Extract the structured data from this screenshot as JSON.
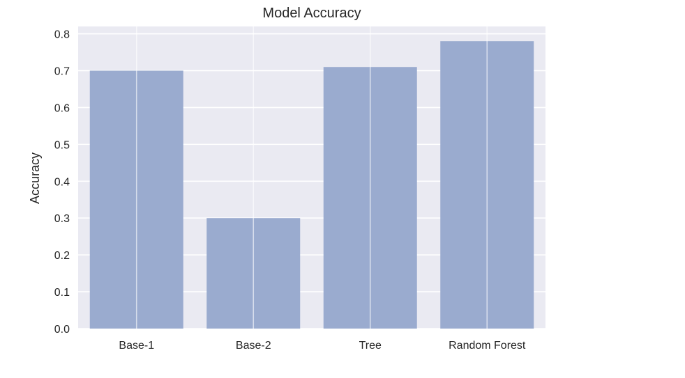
{
  "chart_data": {
    "type": "bar",
    "title": "Model Accuracy",
    "xlabel": "",
    "ylabel": "Accuracy",
    "categories": [
      "Base-1",
      "Base-2",
      "Tree",
      "Random Forest"
    ],
    "values": [
      0.7,
      0.3,
      0.71,
      0.78
    ],
    "ylim": [
      0,
      0.82
    ],
    "yticks": [
      "0.0",
      "0.1",
      "0.2",
      "0.3",
      "0.4",
      "0.5",
      "0.6",
      "0.7",
      "0.8"
    ],
    "grid": true,
    "style": "seaborn-darkgrid",
    "colors": {
      "bar": "#9aabcf",
      "plot_background": "#eaeaf2",
      "grid": "#ffffff",
      "text": "#262626"
    }
  }
}
